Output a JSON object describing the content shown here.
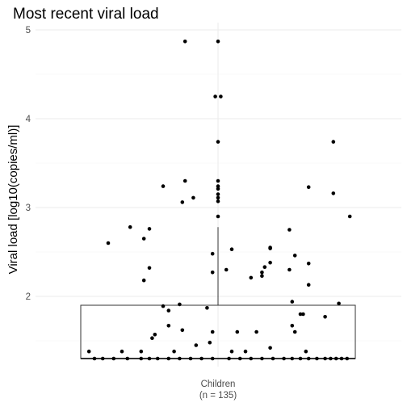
{
  "chart_data": {
    "type": "boxplot-with-jitter",
    "title": "Most recent viral load",
    "xlabel": "",
    "ylabel": "Viral load [log10(copies/ml)]",
    "ylim": [
      1.2,
      5.05
    ],
    "yticks": [
      2,
      3,
      4,
      5
    ],
    "ytick_labels": [
      "2",
      "3",
      "4",
      "5"
    ],
    "grid": true,
    "categories": [
      {
        "label_line1": "Children",
        "label_line2": "(n = 135)"
      }
    ],
    "box": {
      "min": 1.3,
      "q1": 1.3,
      "median": 1.3,
      "q3": 1.9,
      "whisker_high": 2.78
    },
    "points": [
      {
        "x": -0.45,
        "y": 1.3
      },
      {
        "x": -0.42,
        "y": 1.3
      },
      {
        "x": -0.38,
        "y": 1.3
      },
      {
        "x": -0.33,
        "y": 1.3
      },
      {
        "x": -0.28,
        "y": 1.3
      },
      {
        "x": -0.25,
        "y": 1.3
      },
      {
        "x": -0.22,
        "y": 1.3
      },
      {
        "x": -0.18,
        "y": 1.3
      },
      {
        "x": -0.14,
        "y": 1.3
      },
      {
        "x": -0.1,
        "y": 1.3
      },
      {
        "x": -0.06,
        "y": 1.3
      },
      {
        "x": -0.02,
        "y": 1.3
      },
      {
        "x": 0.04,
        "y": 1.3
      },
      {
        "x": 0.08,
        "y": 1.3
      },
      {
        "x": 0.12,
        "y": 1.3
      },
      {
        "x": 0.16,
        "y": 1.3
      },
      {
        "x": 0.2,
        "y": 1.3
      },
      {
        "x": 0.24,
        "y": 1.3
      },
      {
        "x": 0.27,
        "y": 1.3
      },
      {
        "x": 0.3,
        "y": 1.3
      },
      {
        "x": 0.33,
        "y": 1.3
      },
      {
        "x": 0.36,
        "y": 1.3
      },
      {
        "x": 0.39,
        "y": 1.3
      },
      {
        "x": 0.41,
        "y": 1.3
      },
      {
        "x": 0.43,
        "y": 1.3
      },
      {
        "x": 0.45,
        "y": 1.3
      },
      {
        "x": 0.47,
        "y": 1.3
      },
      {
        "x": -0.47,
        "y": 1.38
      },
      {
        "x": -0.35,
        "y": 1.38
      },
      {
        "x": -0.28,
        "y": 1.38
      },
      {
        "x": -0.16,
        "y": 1.38
      },
      {
        "x": 0.05,
        "y": 1.38
      },
      {
        "x": 0.1,
        "y": 1.38
      },
      {
        "x": 0.32,
        "y": 1.38
      },
      {
        "x": -0.4,
        "y": 2.6
      },
      {
        "x": -0.32,
        "y": 2.78
      },
      {
        "x": -0.27,
        "y": 2.65
      },
      {
        "x": -0.27,
        "y": 2.18
      },
      {
        "x": -0.25,
        "y": 2.32
      },
      {
        "x": -0.25,
        "y": 2.76
      },
      {
        "x": -0.2,
        "y": 3.24
      },
      {
        "x": -0.24,
        "y": 1.53
      },
      {
        "x": -0.23,
        "y": 1.57
      },
      {
        "x": -0.2,
        "y": 1.89
      },
      {
        "x": -0.18,
        "y": 1.84
      },
      {
        "x": -0.18,
        "y": 1.67
      },
      {
        "x": -0.13,
        "y": 3.06
      },
      {
        "x": -0.12,
        "y": 3.3
      },
      {
        "x": -0.09,
        "y": 3.11
      },
      {
        "x": -0.13,
        "y": 1.62
      },
      {
        "x": -0.14,
        "y": 1.91
      },
      {
        "x": -0.12,
        "y": 4.87
      },
      {
        "x": -0.08,
        "y": 1.45
      },
      {
        "x": -0.04,
        "y": 1.87
      },
      {
        "x": -0.02,
        "y": 2.48
      },
      {
        "x": -0.02,
        "y": 2.27
      },
      {
        "x": -0.02,
        "y": 1.6
      },
      {
        "x": -0.03,
        "y": 1.48
      },
      {
        "x": 0.0,
        "y": 4.87
      },
      {
        "x": -0.01,
        "y": 4.25
      },
      {
        "x": 0.01,
        "y": 4.25
      },
      {
        "x": 0.0,
        "y": 3.74
      },
      {
        "x": 0.0,
        "y": 3.3
      },
      {
        "x": 0.0,
        "y": 3.24
      },
      {
        "x": 0.0,
        "y": 3.21
      },
      {
        "x": 0.0,
        "y": 3.15
      },
      {
        "x": 0.0,
        "y": 3.11
      },
      {
        "x": 0.0,
        "y": 3.07
      },
      {
        "x": 0.0,
        "y": 2.9
      },
      {
        "x": 0.03,
        "y": 2.3
      },
      {
        "x": 0.05,
        "y": 2.53
      },
      {
        "x": 0.07,
        "y": 1.6
      },
      {
        "x": 0.12,
        "y": 2.21
      },
      {
        "x": 0.14,
        "y": 1.6
      },
      {
        "x": 0.16,
        "y": 2.27
      },
      {
        "x": 0.16,
        "y": 2.23
      },
      {
        "x": 0.19,
        "y": 2.55
      },
      {
        "x": 0.19,
        "y": 2.54
      },
      {
        "x": 0.19,
        "y": 2.38
      },
      {
        "x": 0.19,
        "y": 1.42
      },
      {
        "x": 0.17,
        "y": 2.33
      },
      {
        "x": 0.26,
        "y": 2.75
      },
      {
        "x": 0.26,
        "y": 2.3
      },
      {
        "x": 0.27,
        "y": 1.94
      },
      {
        "x": 0.27,
        "y": 1.67
      },
      {
        "x": 0.28,
        "y": 1.6
      },
      {
        "x": 0.28,
        "y": 2.46
      },
      {
        "x": 0.3,
        "y": 1.8
      },
      {
        "x": 0.31,
        "y": 1.8
      },
      {
        "x": 0.33,
        "y": 2.37
      },
      {
        "x": 0.33,
        "y": 2.13
      },
      {
        "x": 0.33,
        "y": 3.23
      },
      {
        "x": 0.39,
        "y": 1.77
      },
      {
        "x": 0.42,
        "y": 3.74
      },
      {
        "x": 0.42,
        "y": 3.16
      },
      {
        "x": 0.44,
        "y": 1.92
      },
      {
        "x": 0.48,
        "y": 2.9
      }
    ]
  }
}
